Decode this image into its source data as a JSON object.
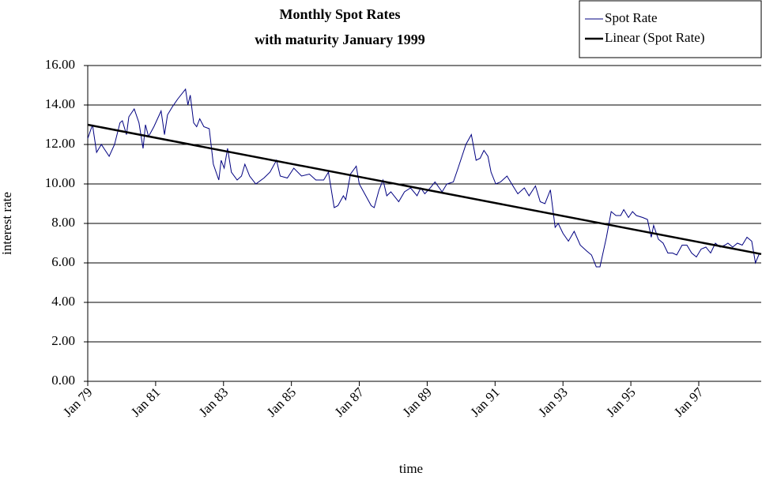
{
  "chart_data": {
    "type": "line",
    "title": [
      "Monthly Spot Rates",
      "with maturity January 1999"
    ],
    "xlabel": "time",
    "ylabel": "interest rate",
    "legend": "upper right",
    "grid": true,
    "xlim": [
      1979,
      1998.84
    ],
    "ylim": [
      0,
      16
    ],
    "xticks": [
      {
        "value": 1979,
        "label": "Jan 79"
      },
      {
        "value": 1981,
        "label": "Jan 81"
      },
      {
        "value": 1983,
        "label": "Jan 83"
      },
      {
        "value": 1985,
        "label": "Jan 85"
      },
      {
        "value": 1987,
        "label": "Jan 87"
      },
      {
        "value": 1989,
        "label": "Jan 89"
      },
      {
        "value": 1991,
        "label": "Jan 91"
      },
      {
        "value": 1993,
        "label": "Jan 93"
      },
      {
        "value": 1995,
        "label": "Jan 95"
      },
      {
        "value": 1997,
        "label": "Jan 97"
      }
    ],
    "yticks": [
      {
        "value": 0,
        "label": "0.00"
      },
      {
        "value": 2,
        "label": "2.00"
      },
      {
        "value": 4,
        "label": "4.00"
      },
      {
        "value": 6,
        "label": "6.00"
      },
      {
        "value": 8,
        "label": "8.00"
      },
      {
        "value": 10,
        "label": "10.00"
      },
      {
        "value": 12,
        "label": "12.00"
      },
      {
        "value": 14,
        "label": "14.00"
      },
      {
        "value": 16,
        "label": "16.00"
      }
    ],
    "series": [
      {
        "name": "Spot Rate",
        "color": "#000080",
        "width": 1,
        "x": [
          1979,
          1979.14,
          1979.26,
          1979.4,
          1979.63,
          1979.79,
          1979.95,
          1980.02,
          1980.14,
          1980.21,
          1980.37,
          1980.51,
          1980.63,
          1980.7,
          1980.79,
          1980.95,
          1981.16,
          1981.26,
          1981.35,
          1981.49,
          1981.65,
          1981.88,
          1981.95,
          1982.02,
          1982.12,
          1982.21,
          1982.3,
          1982.42,
          1982.58,
          1982.7,
          1982.86,
          1982.93,
          1983.02,
          1983.12,
          1983.23,
          1983.4,
          1983.53,
          1983.63,
          1983.77,
          1983.95,
          1984.19,
          1984.37,
          1984.56,
          1984.67,
          1984.88,
          1985.07,
          1985.3,
          1985.53,
          1985.72,
          1985.95,
          1986.09,
          1986.26,
          1986.37,
          1986.53,
          1986.6,
          1986.74,
          1986.91,
          1987,
          1987.16,
          1987.35,
          1987.44,
          1987.58,
          1987.7,
          1987.81,
          1987.93,
          1988.16,
          1988.33,
          1988.51,
          1988.7,
          1988.81,
          1988.93,
          1989.09,
          1989.23,
          1989.44,
          1989.58,
          1989.77,
          1989.91,
          1990.14,
          1990.3,
          1990.44,
          1990.56,
          1990.67,
          1990.79,
          1990.88,
          1991.02,
          1991.16,
          1991.35,
          1991.49,
          1991.67,
          1991.86,
          1992,
          1992.19,
          1992.33,
          1992.47,
          1992.63,
          1992.77,
          1992.86,
          1993,
          1993.16,
          1993.33,
          1993.51,
          1993.7,
          1993.84,
          1993.98,
          1994.09,
          1994.28,
          1994.42,
          1994.56,
          1994.7,
          1994.79,
          1994.93,
          1995.05,
          1995.16,
          1995.35,
          1995.49,
          1995.6,
          1995.67,
          1995.81,
          1995.95,
          1996.09,
          1996.23,
          1996.35,
          1996.51,
          1996.65,
          1996.79,
          1996.93,
          1997.07,
          1997.21,
          1997.35,
          1997.49,
          1997.63,
          1997.77,
          1997.86,
          1998,
          1998.14,
          1998.28,
          1998.42,
          1998.56,
          1998.67,
          1998.79
        ],
        "values": [
          12.3,
          13.0,
          11.6,
          12.0,
          11.4,
          12.0,
          13.1,
          13.2,
          12.5,
          13.4,
          13.8,
          13.1,
          11.8,
          13.0,
          12.4,
          12.9,
          13.7,
          12.5,
          13.5,
          13.9,
          14.3,
          14.8,
          14.0,
          14.5,
          13.1,
          12.9,
          13.3,
          12.9,
          12.8,
          11.0,
          10.2,
          11.2,
          10.8,
          11.8,
          10.6,
          10.2,
          10.4,
          11.0,
          10.4,
          10.0,
          10.3,
          10.6,
          11.2,
          10.4,
          10.3,
          10.8,
          10.4,
          10.5,
          10.2,
          10.2,
          10.6,
          8.8,
          8.9,
          9.4,
          9.2,
          10.5,
          10.9,
          10.0,
          9.5,
          8.9,
          8.8,
          9.7,
          10.2,
          9.4,
          9.6,
          9.1,
          9.6,
          9.8,
          9.4,
          9.8,
          9.5,
          9.8,
          10.1,
          9.6,
          10.0,
          10.1,
          10.8,
          12.0,
          12.5,
          11.2,
          11.3,
          11.7,
          11.4,
          10.6,
          10.0,
          10.1,
          10.4,
          10.0,
          9.5,
          9.8,
          9.4,
          9.9,
          9.1,
          9.0,
          9.7,
          7.8,
          8.0,
          7.5,
          7.1,
          7.6,
          6.9,
          6.6,
          6.4,
          5.8,
          5.8,
          7.3,
          8.6,
          8.4,
          8.4,
          8.7,
          8.3,
          8.6,
          8.4,
          8.3,
          8.2,
          7.3,
          7.9,
          7.2,
          7.0,
          6.5,
          6.5,
          6.4,
          6.9,
          6.9,
          6.5,
          6.3,
          6.7,
          6.8,
          6.5,
          7.0,
          6.8,
          6.9,
          7.0,
          6.8,
          7.0,
          6.9,
          7.3,
          7.1,
          6.0,
          6.5
        ]
      },
      {
        "name": "Linear (Spot Rate)",
        "color": "#000000",
        "width": 2.5,
        "x": [
          1979,
          1998.84
        ],
        "values": [
          13.0,
          6.45
        ]
      }
    ]
  }
}
